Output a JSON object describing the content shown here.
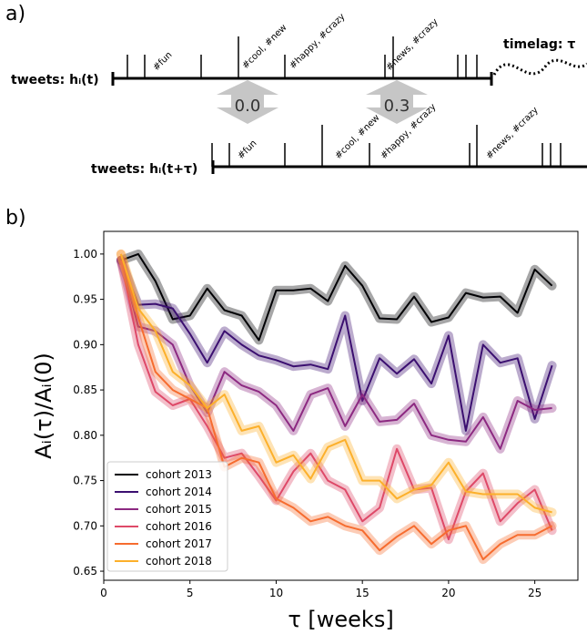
{
  "panel_a": {
    "panel_label": "a)",
    "timeline1_label": "tweets: hᵢ(t)",
    "timeline2_label": "tweets: hᵢ(t+τ)",
    "timelag_label": "timelag: τ",
    "similarity_values": [
      "0.0",
      "0.3"
    ],
    "hashtags_top": [
      "#fun",
      "#cool, #new",
      "#happy, #crazy",
      "#news, #crazy"
    ],
    "hashtags_bottom": [
      "#fun",
      "#cool, #new",
      "#happy, #crazy",
      "#news, #crazy"
    ]
  },
  "panel_b": {
    "panel_label": "b)"
  },
  "chart_data": {
    "type": "line",
    "xlabel": "τ [weeks]",
    "ylabel": "Aᵢ(τ)/Aᵢ(0)",
    "xlim": [
      0,
      27.5
    ],
    "ylim": [
      0.64,
      1.025
    ],
    "xticks": [
      0,
      5,
      10,
      15,
      20,
      25
    ],
    "yticks": [
      0.65,
      0.7,
      0.75,
      0.8,
      0.85,
      0.9,
      0.95,
      1.0
    ],
    "ytick_labels": [
      "0.65",
      "0.70",
      "0.75",
      "0.80",
      "0.85",
      "0.90",
      "0.95",
      "1.00"
    ],
    "grid": false,
    "legend_position": "lower-left",
    "x": [
      1,
      2,
      3,
      4,
      5,
      6,
      7,
      8,
      9,
      10,
      11,
      12,
      13,
      14,
      15,
      16,
      17,
      18,
      19,
      20,
      21,
      22,
      23,
      24,
      25,
      26
    ],
    "series": [
      {
        "name": "cohort 2013",
        "color": "#000004",
        "values": [
          0.993,
          1.0,
          0.97,
          0.928,
          0.932,
          0.962,
          0.938,
          0.932,
          0.905,
          0.96,
          0.96,
          0.962,
          0.948,
          0.987,
          0.965,
          0.929,
          0.928,
          0.953,
          0.925,
          0.93,
          0.957,
          0.952,
          0.953,
          0.935,
          0.983,
          0.965
        ]
      },
      {
        "name": "cohort 2014",
        "color": "#3b0f70",
        "values": [
          0.993,
          0.944,
          0.945,
          0.94,
          0.912,
          0.88,
          0.915,
          0.9,
          0.888,
          0.883,
          0.876,
          0.878,
          0.873,
          0.932,
          0.838,
          0.885,
          0.868,
          0.884,
          0.857,
          0.91,
          0.805,
          0.9,
          0.88,
          0.885,
          0.818,
          0.877
        ]
      },
      {
        "name": "cohort 2015",
        "color": "#8c2981",
        "values": [
          0.993,
          0.92,
          0.915,
          0.9,
          0.855,
          0.825,
          0.87,
          0.855,
          0.848,
          0.833,
          0.805,
          0.845,
          0.852,
          0.81,
          0.845,
          0.815,
          0.817,
          0.835,
          0.8,
          0.795,
          0.793,
          0.82,
          0.785,
          0.838,
          0.828,
          0.83
        ]
      },
      {
        "name": "cohort 2016",
        "color": "#de4968",
        "values": [
          0.993,
          0.9,
          0.848,
          0.833,
          0.84,
          0.81,
          0.775,
          0.78,
          0.755,
          0.728,
          0.76,
          0.78,
          0.75,
          0.74,
          0.705,
          0.72,
          0.785,
          0.74,
          0.742,
          0.685,
          0.738,
          0.758,
          0.705,
          0.725,
          0.74,
          0.695
        ]
      },
      {
        "name": "cohort 2017",
        "color": "#f66c2f",
        "values": [
          1.0,
          0.93,
          0.87,
          0.85,
          0.84,
          0.83,
          0.765,
          0.775,
          0.77,
          0.73,
          0.72,
          0.705,
          0.71,
          0.7,
          0.695,
          0.673,
          0.688,
          0.7,
          0.68,
          0.695,
          0.7,
          0.663,
          0.68,
          0.69,
          0.69,
          0.7
        ]
      },
      {
        "name": "cohort 2018",
        "color": "#fcb02b",
        "values": [
          1.0,
          0.94,
          0.915,
          0.87,
          0.855,
          0.83,
          0.845,
          0.805,
          0.81,
          0.77,
          0.778,
          0.752,
          0.787,
          0.795,
          0.75,
          0.75,
          0.73,
          0.74,
          0.745,
          0.77,
          0.738,
          0.735,
          0.735,
          0.735,
          0.72,
          0.715
        ]
      }
    ]
  }
}
